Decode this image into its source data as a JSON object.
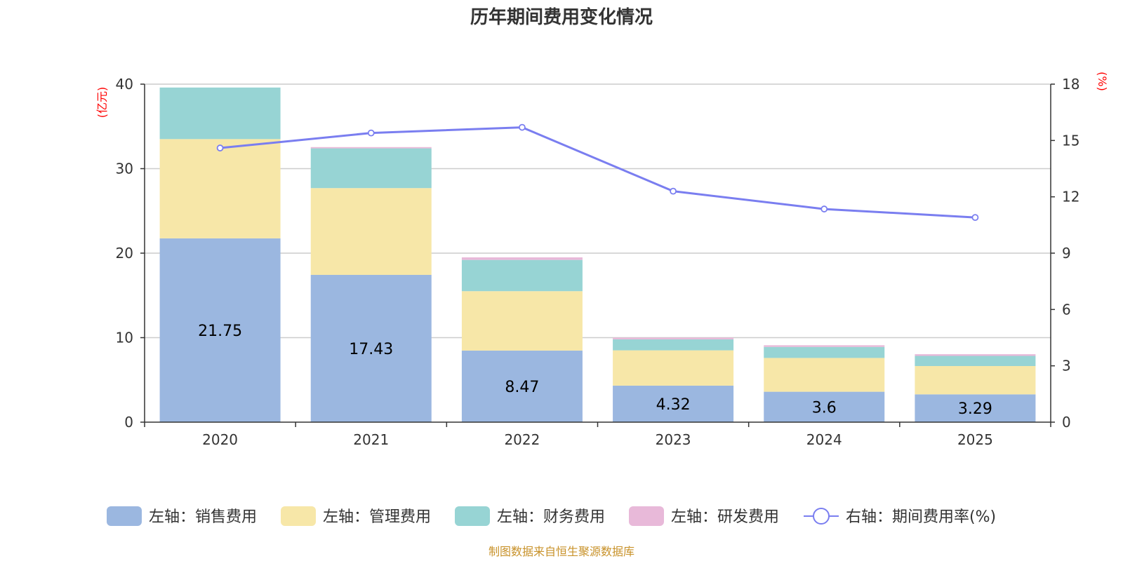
{
  "chart_data": {
    "type": "bar",
    "stacked": true,
    "title": "历年期间费用变化情况",
    "categories": [
      "2020",
      "2021",
      "2022",
      "2023",
      "2024",
      "2025"
    ],
    "left_axis": {
      "unit": "(亿元)",
      "ylim": [
        0,
        40
      ],
      "ticks": [
        "0",
        "10",
        "20",
        "30",
        "40"
      ]
    },
    "right_axis": {
      "unit": "(%)",
      "ylim": [
        0,
        18
      ],
      "ticks": [
        "0",
        "3",
        "6",
        "9",
        "12",
        "15",
        "18"
      ]
    },
    "series": [
      {
        "name": "左轴：销售费用",
        "kind": "bar",
        "axis": "left",
        "color": "#9bb7e0",
        "values": [
          21.75,
          17.43,
          8.47,
          4.32,
          3.6,
          3.29
        ],
        "labels": [
          "21.75",
          "17.43",
          "8.47",
          "4.32",
          "3.6",
          "3.29"
        ]
      },
      {
        "name": "左轴：管理费用",
        "kind": "bar",
        "axis": "left",
        "color": "#f7e7a8",
        "values": [
          11.75,
          10.27,
          7.03,
          4.18,
          4.0,
          3.35
        ]
      },
      {
        "name": "左轴：财务费用",
        "kind": "bar",
        "axis": "left",
        "color": "#97d4d4",
        "values": [
          6.1,
          4.7,
          3.7,
          1.3,
          1.3,
          1.2
        ]
      },
      {
        "name": "左轴：研发费用",
        "kind": "bar",
        "axis": "left",
        "color": "#e8b9d9",
        "values": [
          0.0,
          0.15,
          0.3,
          0.2,
          0.2,
          0.2
        ]
      },
      {
        "name": "右轴：期间费用率(%)",
        "kind": "line",
        "axis": "right",
        "color": "#7a7ef0",
        "values": [
          14.6,
          15.4,
          15.7,
          12.3,
          11.35,
          10.9
        ]
      }
    ],
    "legend_position": "bottom",
    "grid": true
  },
  "source_note": "制图数据来自恒生聚源数据库"
}
